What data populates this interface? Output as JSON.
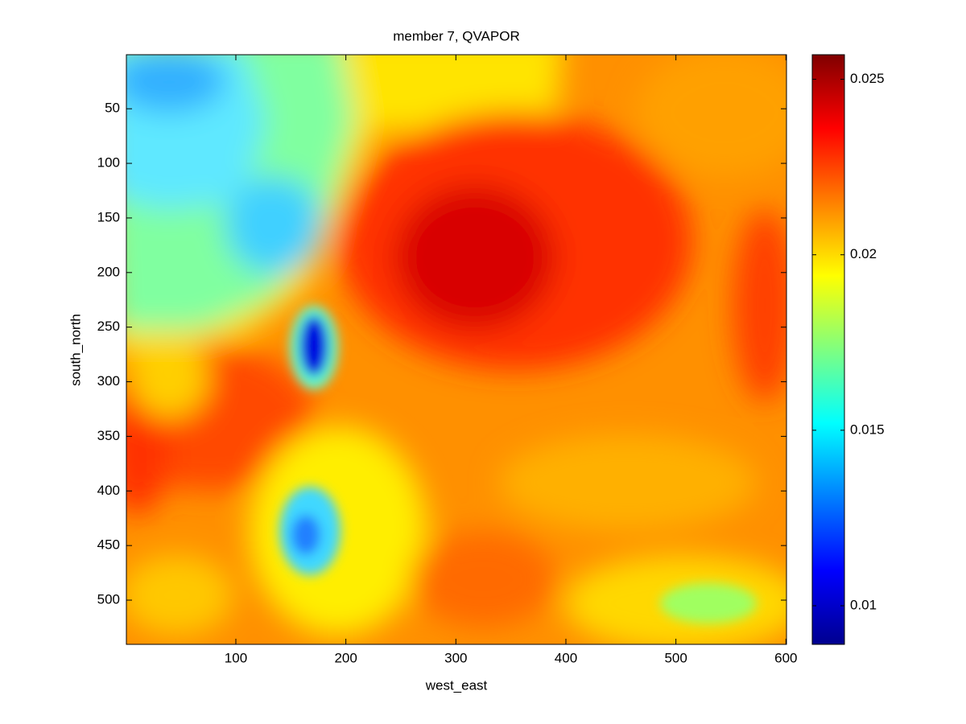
{
  "chart_data": {
    "type": "heatmap",
    "title": "member 7, QVAPOR",
    "xlabel": "west_east",
    "ylabel": "south_north",
    "xlim": [
      0.5,
      600.5
    ],
    "xticks": [
      100,
      200,
      300,
      400,
      500,
      600
    ],
    "ylim": [
      0.5,
      540.5
    ],
    "y_reversed": true,
    "yticks": [
      50,
      100,
      150,
      200,
      250,
      300,
      350,
      400,
      450,
      500
    ],
    "colorbar": {
      "clim": [
        0.0089,
        0.0257
      ],
      "ticks": [
        0.01,
        0.015,
        0.02,
        0.025
      ],
      "colormap": "jet"
    }
  }
}
